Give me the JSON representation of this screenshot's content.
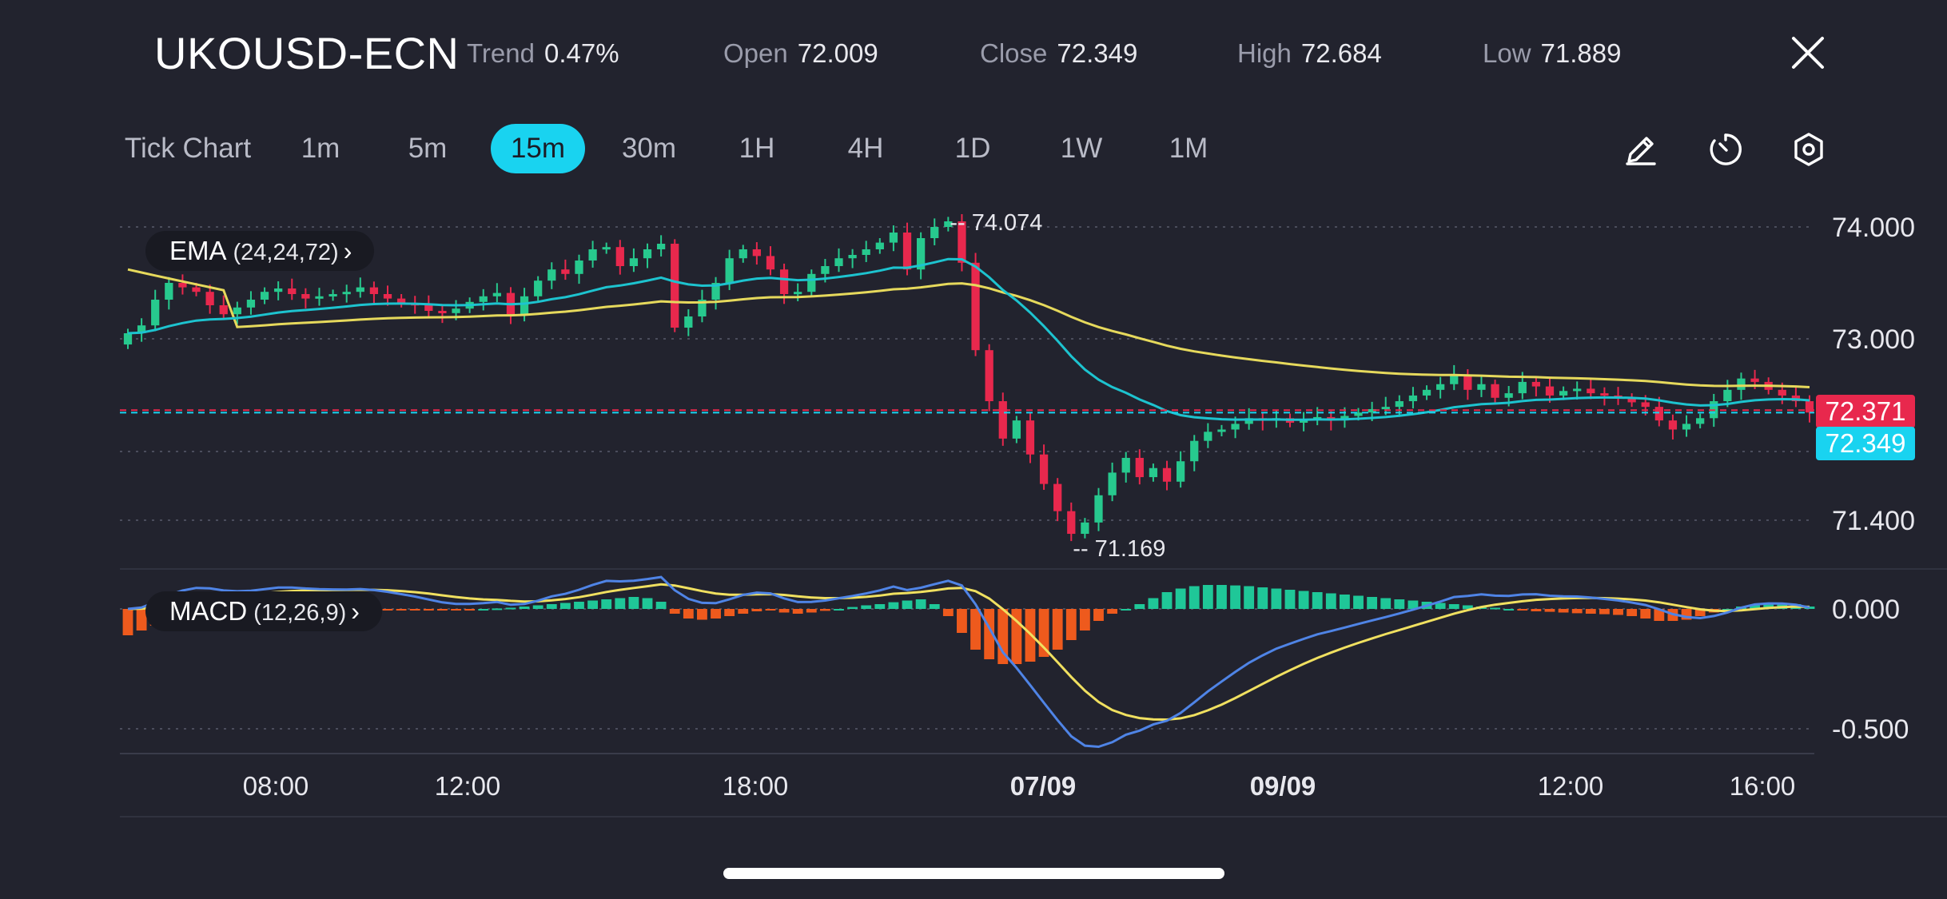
{
  "header": {
    "symbol": "UKOUSD-ECN",
    "trend": {
      "label": "Trend",
      "value": "0.47%"
    },
    "open": {
      "label": "Open",
      "value": "72.009"
    },
    "close": {
      "label": "Close",
      "value": "72.349"
    },
    "high": {
      "label": "High",
      "value": "72.684"
    },
    "low": {
      "label": "Low",
      "value": "71.889"
    },
    "close_icon": "close-icon"
  },
  "toolbar": {
    "timeframes": [
      "Tick Chart",
      "1m",
      "5m",
      "15m",
      "30m",
      "1H",
      "4H",
      "1D",
      "1W",
      "1M"
    ],
    "active": "15m",
    "icons": [
      "pencil-icon",
      "timer-icon",
      "settings-hexagon-icon"
    ]
  },
  "indicators": {
    "ema": {
      "name": "EMA",
      "params": "(24,24,72)"
    },
    "macd": {
      "name": "MACD",
      "params": "(12,26,9)"
    }
  },
  "colors": {
    "background": "#22232e",
    "up": "#27c98e",
    "down": "#e8284d",
    "ema_fast": "#1dc3cf",
    "ema_slow": "#e6d95c",
    "macd_line": "#4f84e6",
    "signal_line": "#f0e060",
    "hist_pos": "#1fc798",
    "hist_neg": "#ee5a1d",
    "accent": "#19d3f0"
  },
  "chart_data": [
    {
      "type": "candlestick",
      "yticks": [
        "74.000",
        "73.000",
        "71.400"
      ],
      "y_tick_values": [
        74.0,
        73.0,
        71.4
      ],
      "ylim": [
        70.95,
        74.25
      ],
      "grid": true,
      "xticks": [
        {
          "label": "08:00",
          "bold": false
        },
        {
          "label": "12:00",
          "bold": false
        },
        {
          "label": "18:00",
          "bold": false
        },
        {
          "label": "07/09",
          "bold": true
        },
        {
          "label": "09/09",
          "bold": true
        },
        {
          "label": "12:00",
          "bold": false
        },
        {
          "label": "16:00",
          "bold": false
        }
      ],
      "annotations": [
        {
          "text": "74.074",
          "value": 74.074,
          "kind": "high"
        },
        {
          "text": "71.169",
          "value": 71.169,
          "kind": "low"
        }
      ],
      "price_labels": [
        {
          "text": "72.371",
          "value": 72.371,
          "color": "#e8284d"
        },
        {
          "text": "72.349",
          "value": 72.349,
          "color": "#19d3f0"
        }
      ],
      "closes": [
        73.05,
        73.12,
        73.35,
        73.5,
        73.46,
        73.42,
        73.3,
        73.22,
        73.28,
        73.35,
        73.42,
        73.45,
        73.4,
        73.36,
        73.38,
        73.4,
        73.42,
        73.46,
        73.4,
        73.36,
        73.32,
        73.3,
        73.25,
        73.23,
        73.27,
        73.33,
        73.38,
        73.41,
        73.22,
        73.38,
        73.52,
        73.62,
        73.58,
        73.7,
        73.8,
        73.82,
        73.65,
        73.72,
        73.8,
        73.85,
        73.1,
        73.2,
        73.35,
        73.5,
        73.72,
        73.8,
        73.74,
        73.62,
        73.4,
        73.42,
        73.58,
        73.65,
        73.72,
        73.75,
        73.8,
        73.86,
        73.95,
        73.62,
        73.9,
        74.0,
        74.05,
        73.68,
        72.9,
        72.45,
        72.12,
        72.28,
        71.98,
        71.72,
        71.48,
        71.28,
        71.38,
        71.62,
        71.82,
        71.95,
        71.78,
        71.86,
        71.74,
        71.92,
        72.1,
        72.18,
        72.2,
        72.25,
        72.3,
        72.28,
        72.3,
        72.26,
        72.29,
        72.31,
        72.28,
        72.32,
        72.35,
        72.38,
        72.4,
        72.45,
        72.5,
        72.55,
        72.6,
        72.68,
        72.55,
        72.6,
        72.48,
        72.52,
        72.62,
        72.58,
        72.5,
        72.54,
        72.56,
        72.52,
        72.5,
        72.48,
        72.44,
        72.4,
        72.28,
        72.2,
        72.25,
        72.3,
        72.45,
        72.55,
        72.65,
        72.62,
        72.55,
        72.5,
        72.45,
        72.35
      ]
    },
    {
      "type": "macd",
      "yticks": [
        "0.000",
        "-0.500"
      ],
      "y_tick_values": [
        0.0,
        -0.5
      ],
      "ylim": [
        -0.62,
        0.14
      ],
      "grid": true,
      "hist": [
        -0.11,
        -0.09,
        -0.07,
        -0.05,
        -0.04,
        -0.03,
        -0.025,
        -0.02,
        -0.015,
        -0.01,
        -0.005,
        0.0,
        0.005,
        0.005,
        0.0,
        -0.005,
        -0.005,
        -0.005,
        -0.005,
        -0.006,
        -0.005,
        -0.005,
        -0.004,
        -0.003,
        -0.002,
        -0.001,
        0.0,
        0.002,
        0.005,
        0.01,
        0.015,
        0.02,
        0.025,
        0.03,
        0.035,
        0.04,
        0.045,
        0.05,
        0.045,
        0.03,
        -0.02,
        -0.04,
        -0.045,
        -0.04,
        -0.03,
        -0.02,
        -0.01,
        -0.005,
        -0.015,
        -0.02,
        -0.015,
        -0.008,
        0.0,
        0.008,
        0.015,
        0.02,
        0.028,
        0.035,
        0.04,
        0.02,
        -0.03,
        -0.1,
        -0.17,
        -0.21,
        -0.23,
        -0.23,
        -0.22,
        -0.2,
        -0.17,
        -0.13,
        -0.09,
        -0.05,
        -0.02,
        0.0,
        0.02,
        0.045,
        0.07,
        0.085,
        0.095,
        0.1,
        0.1,
        0.098,
        0.095,
        0.09,
        0.085,
        0.08,
        0.075,
        0.07,
        0.065,
        0.06,
        0.055,
        0.05,
        0.045,
        0.04,
        0.035,
        0.03,
        0.025,
        0.02,
        0.015,
        0.01,
        0.005,
        0.0,
        -0.005,
        -0.01,
        -0.012,
        -0.015,
        -0.018,
        -0.02,
        -0.022,
        -0.025,
        -0.03,
        -0.04,
        -0.05,
        -0.05,
        -0.045,
        -0.03,
        -0.015,
        0.0,
        0.01,
        0.015,
        0.02,
        0.025,
        0.02,
        0.01
      ]
    }
  ]
}
